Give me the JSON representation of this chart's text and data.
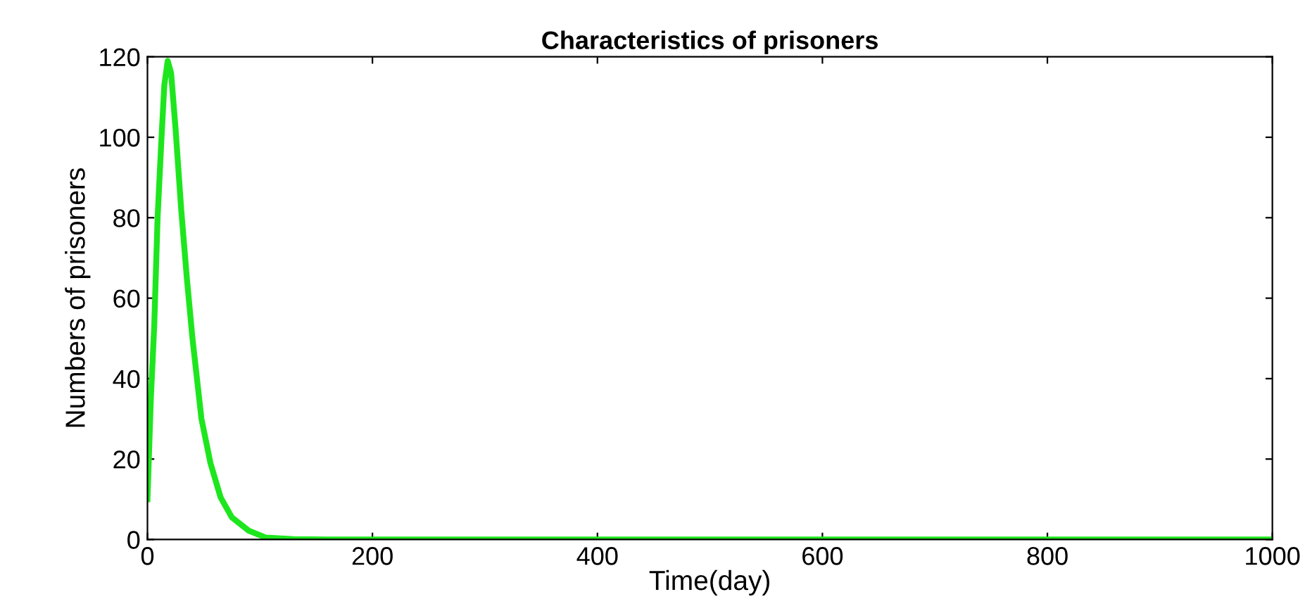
{
  "chart_data": {
    "type": "line",
    "title": "Characteristics of prisoners",
    "xlabel": "Time(day)",
    "ylabel": "Numbers of prisoners",
    "series": [
      {
        "color": "#1ee61e",
        "x": [
          0,
          3,
          6,
          9,
          12.5,
          15,
          18,
          21,
          25,
          30,
          35,
          40,
          48,
          56,
          65,
          75,
          90,
          105,
          130,
          160,
          200,
          300,
          500,
          700,
          1000
        ],
        "values": [
          10,
          35,
          53,
          80,
          100,
          113,
          119,
          116,
          102,
          82,
          65,
          50,
          30,
          19,
          10.5,
          5.5,
          2.2,
          0.5,
          0.1,
          0,
          0,
          0,
          0,
          0,
          0
        ]
      }
    ],
    "xlim": [
      0,
      1000
    ],
    "ylim": [
      0,
      120
    ],
    "xticks": [
      0,
      200,
      400,
      600,
      800,
      1000
    ],
    "yticks": [
      0,
      20,
      40,
      60,
      80,
      100,
      120
    ],
    "grid": false,
    "legend": false
  }
}
